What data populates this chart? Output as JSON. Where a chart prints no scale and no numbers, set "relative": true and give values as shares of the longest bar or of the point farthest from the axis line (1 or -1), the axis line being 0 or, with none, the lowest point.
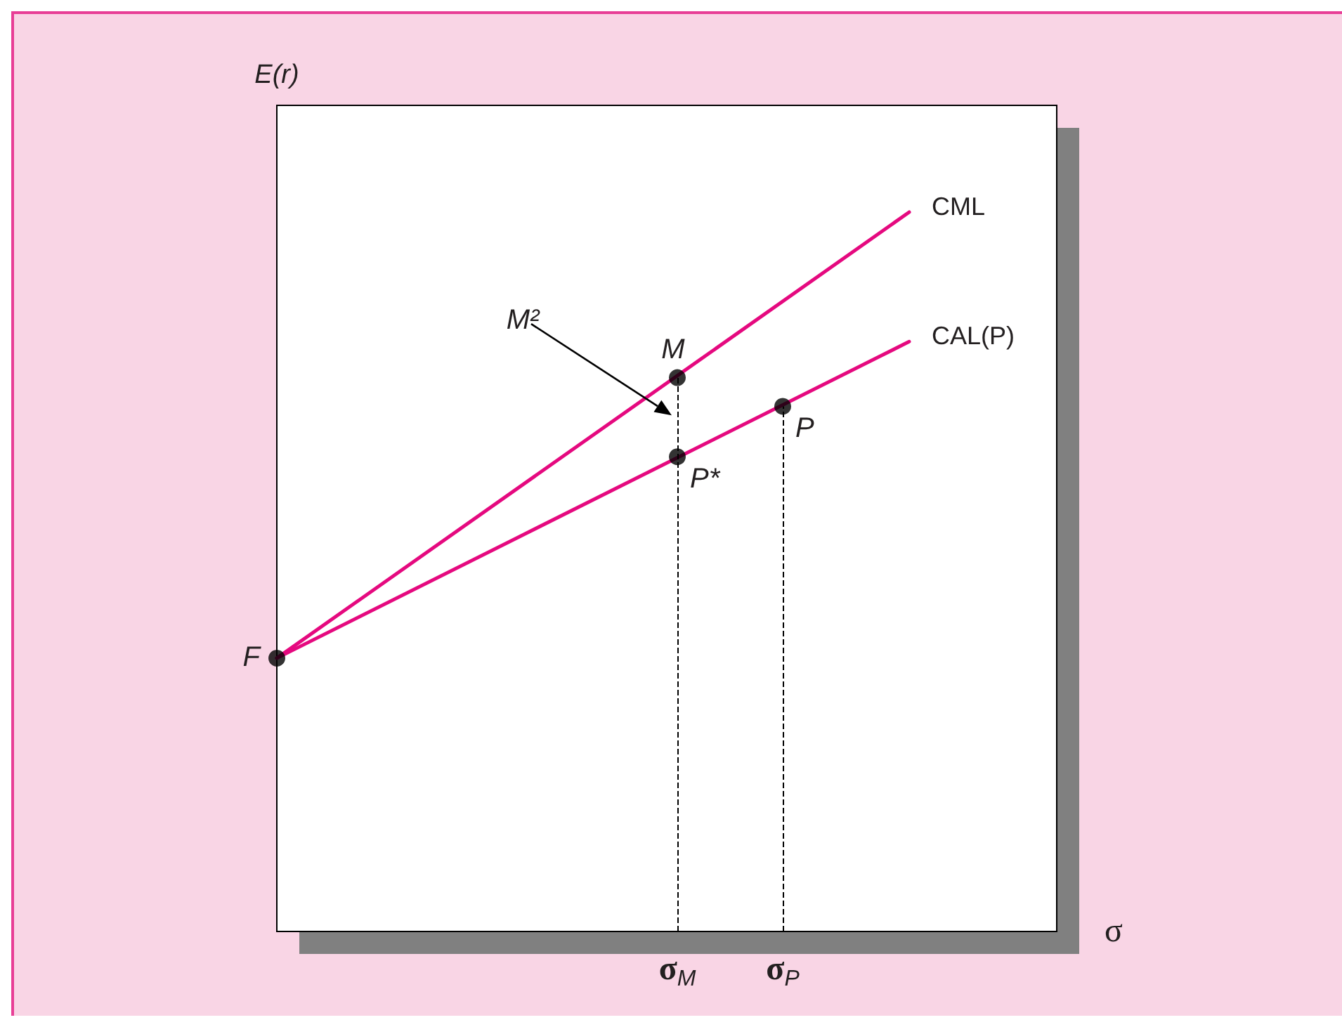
{
  "chart_data": {
    "type": "line",
    "relative": true,
    "xlabel": "σ",
    "ylabel": "E(r)",
    "tick_labels": "x",
    "grid": false,
    "legend": false,
    "marker": "circle",
    "line_style": "solid",
    "categories": [
      null,
      null,
      null,
      null,
      null,
      null,
      null,
      null,
      null,
      null,
      null,
      null,
      null,
      null,
      null,
      null,
      null,
      null,
      null,
      "σ$_{M}$",
      null,
      null,
      null,
      null,
      "σ$_{P}$",
      null,
      null,
      null,
      null,
      null,
      null,
      null,
      null,
      null,
      null,
      null,
      null,
      null
    ],
    "series": [
      {
        "name": "CML",
        "color": "#e5097f",
        "marker": "none",
        "values": [
          0.38,
          null,
          null,
          null,
          null,
          null,
          null,
          null,
          null,
          null,
          null,
          null,
          null,
          null,
          null,
          null,
          null,
          null,
          null,
          null,
          null,
          null,
          null,
          null,
          null,
          null,
          null,
          null,
          null,
          null,
          1,
          null,
          null,
          null,
          null,
          null,
          null,
          null
        ]
      },
      {
        "name": "CAL(P)",
        "color": "#e5097f",
        "marker": "none",
        "values": [
          0.38,
          null,
          null,
          null,
          null,
          null,
          null,
          null,
          null,
          null,
          null,
          null,
          null,
          null,
          null,
          null,
          null,
          null,
          null,
          null,
          null,
          null,
          null,
          null,
          null,
          null,
          null,
          null,
          null,
          null,
          0.82,
          null,
          null,
          null,
          null,
          null,
          null,
          null
        ]
      },
      {
        "type": "scatter",
        "color": "#000000",
        "values": [
          0.38,
          null,
          null,
          null,
          null,
          null,
          null,
          null,
          null,
          null,
          null,
          null,
          null,
          null,
          null,
          null,
          null,
          null,
          null,
          0.77,
          null,
          null,
          null,
          null,
          0.73,
          null,
          null,
          null,
          null,
          null,
          null,
          null,
          null,
          null,
          null,
          null,
          null,
          null
        ]
      },
      {
        "type": "scatter",
        "color": "#000000",
        "values": [
          null,
          null,
          null,
          null,
          null,
          null,
          null,
          null,
          null,
          null,
          null,
          null,
          null,
          null,
          null,
          null,
          null,
          null,
          null,
          0.66,
          null,
          null,
          null,
          null,
          null,
          null,
          null,
          null,
          null,
          null,
          null,
          null,
          null,
          null,
          null,
          null,
          null,
          null
        ]
      }
    ],
    "ref_lines": [
      {
        "axis": "x",
        "value": "σ$_{M}$",
        "color": "#000000",
        "line_style": "dashed"
      },
      {
        "axis": "x",
        "value": "σ$_{P}$",
        "color": "#000000",
        "line_style": "dashed"
      }
    ],
    "annotations": [
      "M²",
      "F",
      {
        "text": "M",
        "x": "σ$_{M}$",
        "y": 0.77
      },
      {
        "text": "P*",
        "x": "σ$_{M}$",
        "y": 0.66
      },
      {
        "text": "P",
        "x": "σ$_{P}$",
        "y": 0.73
      }
    ]
  }
}
